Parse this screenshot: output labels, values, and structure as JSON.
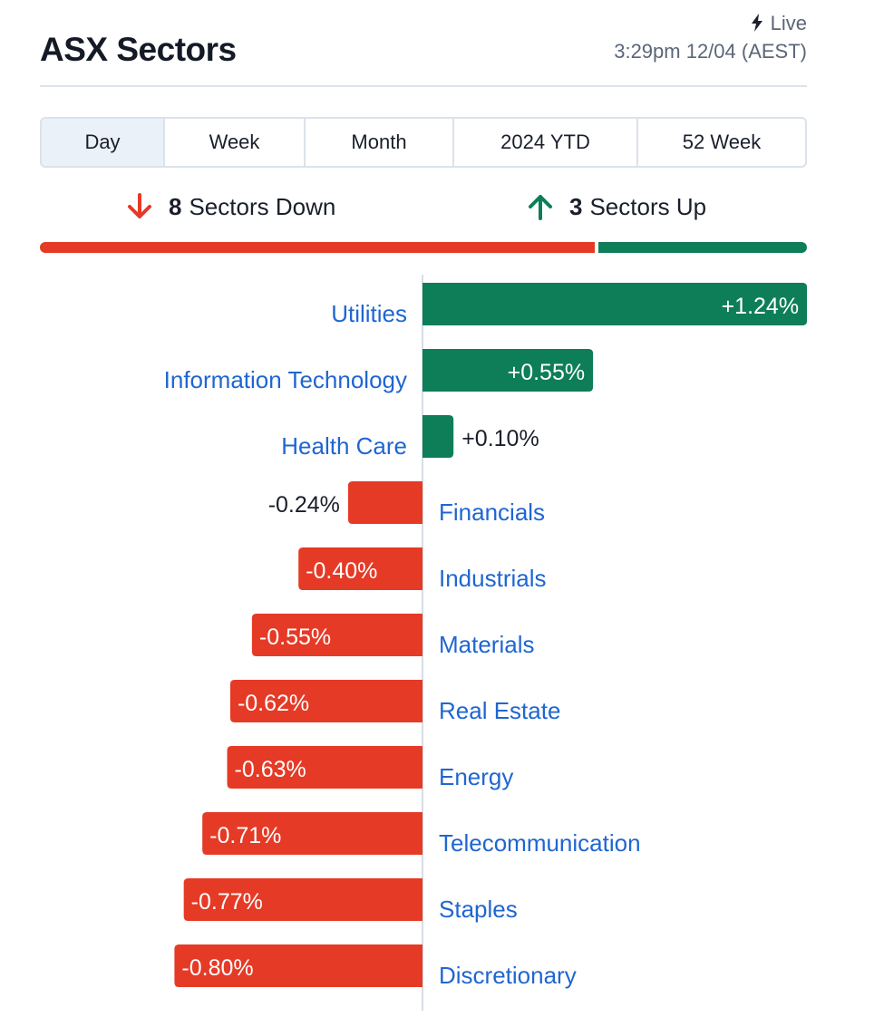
{
  "header": {
    "title": "ASX Sectors",
    "live_label": "Live",
    "timestamp": "3:29pm 12/04 (AEST)"
  },
  "tabs": [
    {
      "label": "Day",
      "active": true
    },
    {
      "label": "Week",
      "active": false
    },
    {
      "label": "Month",
      "active": false
    },
    {
      "label": "2024 YTD",
      "active": false
    },
    {
      "label": "52 Week",
      "active": false
    }
  ],
  "summary": {
    "down_count": "8",
    "down_label": "Sectors Down",
    "up_count": "3",
    "up_label": "Sectors Up"
  },
  "colors": {
    "positive": "#0d7e58",
    "negative": "#e53a26",
    "link": "#1f66d1",
    "text": "#1a1f2b"
  },
  "chart_data": {
    "type": "bar",
    "orientation": "horizontal",
    "categories": [
      "Utilities",
      "Information Technology",
      "Health Care",
      "Financials",
      "Industrials",
      "Materials",
      "Real Estate",
      "Energy",
      "Telecommunication",
      "Staples",
      "Discretionary"
    ],
    "values": [
      1.24,
      0.55,
      0.1,
      -0.24,
      -0.4,
      -0.55,
      -0.62,
      -0.63,
      -0.71,
      -0.77,
      -0.8
    ],
    "labels": [
      "+1.24%",
      "+0.55%",
      "+0.10%",
      "-0.24%",
      "-0.40%",
      "-0.55%",
      "-0.62%",
      "-0.63%",
      "-0.71%",
      "-0.77%",
      "-0.80%"
    ]
  }
}
